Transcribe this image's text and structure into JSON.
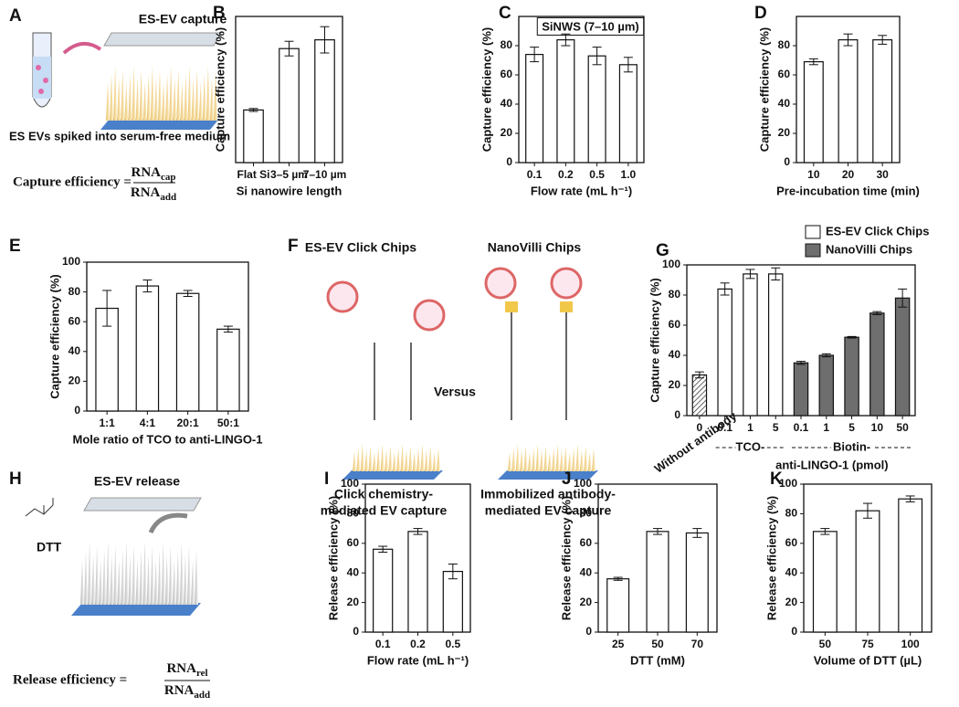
{
  "panels": {
    "A": {
      "letter": "A",
      "title": "ES-EV capture",
      "caption": "ES EVs spiked into serum-free medium",
      "formula": {
        "lhs": "Capture efficiency =",
        "num": "RNA",
        "num_sub": "cap",
        "den": "RNA",
        "den_sub": "add"
      }
    },
    "F": {
      "letter": "F",
      "left_title": "ES-EV Click Chips",
      "right_title": "NanoVilli Chips",
      "versus": "Versus",
      "left_caption": [
        "Click chemistry-",
        "mediated EV capture"
      ],
      "right_caption": [
        "Immobilized antibody-",
        "mediated EV capture"
      ]
    },
    "H": {
      "letter": "H",
      "title": "ES-EV release",
      "reagent": "DTT",
      "formula": {
        "lhs": "Release efficiency =",
        "num": "RNA",
        "num_sub": "rel",
        "den": "RNA",
        "den_sub": "add"
      }
    }
  },
  "chart_data": [
    {
      "type": "bar",
      "label": "B",
      "y_label": "Capture efficiency (%)",
      "x_label": "Si nanowire length",
      "categories": [
        "Flat Si",
        "3–5 µm",
        "7–10 µm"
      ],
      "values": [
        36,
        78,
        84
      ],
      "errors": [
        1,
        5,
        9
      ],
      "color": "#ffffff",
      "ylim": [
        0,
        100
      ]
    },
    {
      "type": "bar",
      "label": "C",
      "annotation": "SiNWS (7–10 µm)",
      "y_label": "Capture efficiency (%)",
      "x_label": "Flow rate (mL h⁻¹)",
      "categories": [
        "0.1",
        "0.2",
        "0.5",
        "1.0"
      ],
      "values": [
        74,
        84,
        73,
        67
      ],
      "errors": [
        5,
        4,
        6,
        5
      ],
      "color": "#ffffff",
      "ylim": [
        0,
        100
      ],
      "yticks": [
        0,
        20,
        40,
        60,
        80
      ]
    },
    {
      "type": "bar",
      "label": "D",
      "y_label": "Capture efficiency (%)",
      "x_label": "Pre-incubation time (min)",
      "categories": [
        "10",
        "20",
        "30"
      ],
      "values": [
        69,
        84,
        84
      ],
      "errors": [
        2,
        4,
        3
      ],
      "color": "#ffffff",
      "ylim": [
        0,
        100
      ],
      "yticks": [
        0,
        20,
        40,
        60,
        80
      ]
    },
    {
      "type": "bar",
      "label": "E",
      "y_label": "Capture efficiency (%)",
      "x_label": "Mole ratio of TCO to anti-LINGO-1",
      "categories": [
        "1:1",
        "4:1",
        "20:1",
        "50:1"
      ],
      "values": [
        69,
        84,
        79,
        55
      ],
      "errors": [
        12,
        4,
        2,
        2
      ],
      "color": "#ffffff",
      "ylim": [
        0,
        100
      ],
      "yticks": [
        0,
        20,
        40,
        60,
        80,
        100
      ]
    },
    {
      "type": "bar",
      "label": "G",
      "y_label": "Capture efficiency (%)",
      "x_label": "anti-LINGO-1 (pmol)",
      "group_labels": [
        "Without antibody",
        "TCO-",
        "Biotin-"
      ],
      "legend": "upper right",
      "categories": [
        "0",
        "0.1",
        "1",
        "5",
        "0.1",
        "1",
        "5",
        "10",
        "50"
      ],
      "series": [
        {
          "color": "#ffffff",
          "pattern": "hatch",
          "values": [
            27,
            null,
            null,
            null,
            null,
            null,
            null,
            null,
            null
          ],
          "errors": [
            2,
            null,
            null,
            null,
            null,
            null,
            null,
            null,
            null
          ]
        },
        {
          "name": "ES-EV Click Chips",
          "color": "#ffffff",
          "values": [
            null,
            84,
            94,
            94,
            null,
            null,
            null,
            null,
            null
          ],
          "errors": [
            null,
            4,
            3,
            4,
            null,
            null,
            null,
            null,
            null
          ]
        },
        {
          "name": "NanoVilli Chips",
          "color": "#6e6e6e",
          "values": [
            null,
            null,
            null,
            null,
            35,
            40,
            52,
            68,
            78
          ],
          "errors": [
            null,
            null,
            null,
            null,
            1,
            1,
            0.5,
            1,
            6
          ]
        }
      ],
      "ylim": [
        0,
        100
      ],
      "yticks": [
        0,
        20,
        40,
        60,
        80,
        100
      ]
    },
    {
      "type": "bar",
      "label": "I",
      "y_label": "Release efficiency (%)",
      "x_label": "Flow rate (mL h⁻¹)",
      "categories": [
        "0.1",
        "0.2",
        "0.5"
      ],
      "values": [
        56,
        68,
        41
      ],
      "errors": [
        2,
        2,
        5
      ],
      "color": "#ffffff",
      "ylim": [
        0,
        100
      ],
      "yticks": [
        0,
        20,
        40,
        60,
        80,
        100
      ]
    },
    {
      "type": "bar",
      "label": "J",
      "y_label": "Release efficiency (%)",
      "x_label": "DTT (mM)",
      "categories": [
        "25",
        "50",
        "70"
      ],
      "values": [
        36,
        68,
        67
      ],
      "errors": [
        1,
        2,
        3
      ],
      "color": "#ffffff",
      "ylim": [
        0,
        100
      ],
      "yticks": [
        0,
        20,
        40,
        60,
        80,
        100
      ]
    },
    {
      "type": "bar",
      "label": "K",
      "y_label": "Release efficiency (%)",
      "x_label": "Volume of DTT (µL)",
      "categories": [
        "50",
        "75",
        "100"
      ],
      "values": [
        68,
        82,
        90
      ],
      "errors": [
        2,
        5,
        2
      ],
      "color": "#ffffff",
      "ylim": [
        0,
        100
      ],
      "yticks": [
        0,
        20,
        40,
        60,
        80,
        100
      ]
    }
  ]
}
